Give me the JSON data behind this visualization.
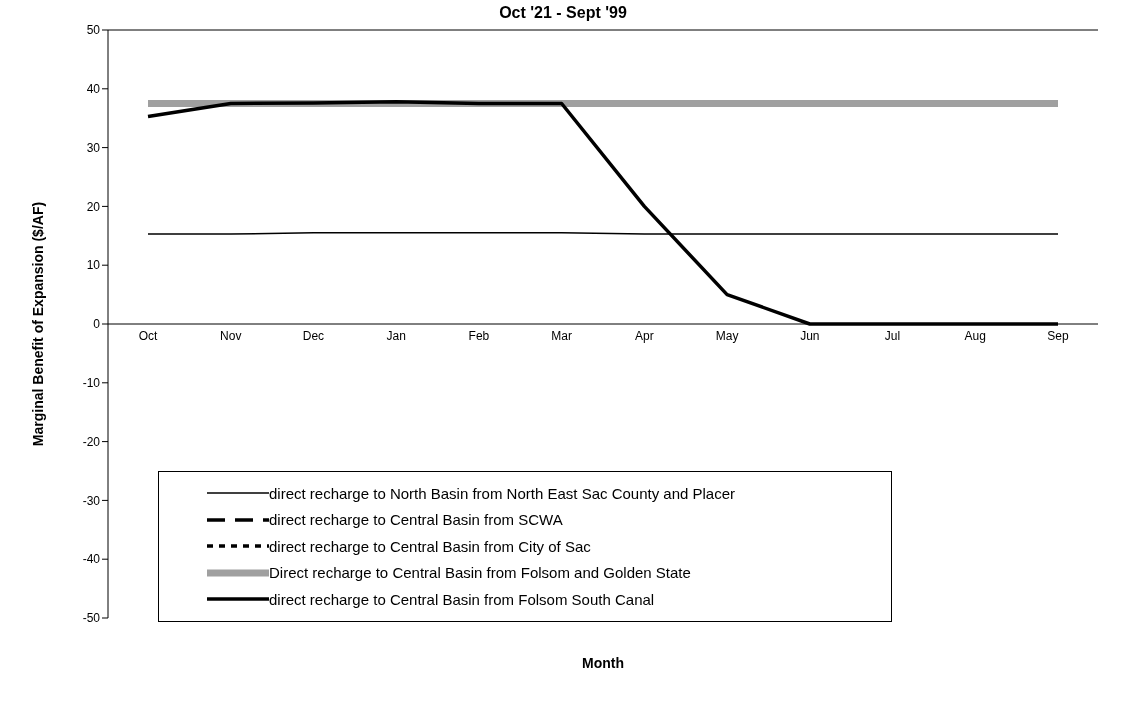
{
  "chart_data": {
    "type": "line",
    "title": "Oct '21 - Sept '99",
    "xlabel": "Month",
    "ylabel": "Marginal Benefit of Expansion ($/AF)",
    "categories": [
      "Oct",
      "Nov",
      "Dec",
      "Jan",
      "Feb",
      "Mar",
      "Apr",
      "May",
      "Jun",
      "Jul",
      "Aug",
      "Sep"
    ],
    "ylim": [
      -50,
      50
    ],
    "yticks": [
      -50,
      -40,
      -30,
      -20,
      -10,
      0,
      10,
      20,
      30,
      40,
      50
    ],
    "grid": false,
    "legend": "bottom",
    "marker": "none",
    "series": [
      {
        "name": "direct recharge to North Basin from North East Sac County and Placer",
        "color": "#000000",
        "line_style": "solid",
        "values": [
          15.3,
          15.3,
          15.5,
          15.5,
          15.5,
          15.5,
          15.3,
          15.3,
          15.3,
          15.3,
          15.3,
          15.3
        ]
      },
      {
        "name": "direct recharge to Central Basin from SCWA",
        "color": "#000000",
        "line_style": "dashed",
        "values": [
          null,
          null,
          null,
          null,
          null,
          null,
          null,
          null,
          null,
          null,
          null,
          null
        ]
      },
      {
        "name": "direct recharge to Central Basin from City of Sac",
        "color": "#000000",
        "line_style": "dotted",
        "values": [
          null,
          null,
          null,
          null,
          null,
          null,
          null,
          null,
          null,
          null,
          null,
          null
        ]
      },
      {
        "name": "Direct recharge to Central Basin from Folsom and Golden State",
        "color": "#a0a0a0",
        "line_style": "solid",
        "values": [
          37.5,
          37.5,
          37.5,
          37.5,
          37.5,
          37.5,
          37.5,
          37.5,
          37.5,
          37.5,
          37.5,
          37.5
        ]
      },
      {
        "name": "direct recharge to Central Basin from Folsom South Canal",
        "color": "#000000",
        "line_style": "solid",
        "values": [
          35.3,
          37.5,
          37.6,
          37.8,
          37.5,
          37.5,
          20,
          5,
          0,
          0,
          0,
          0
        ]
      }
    ]
  }
}
